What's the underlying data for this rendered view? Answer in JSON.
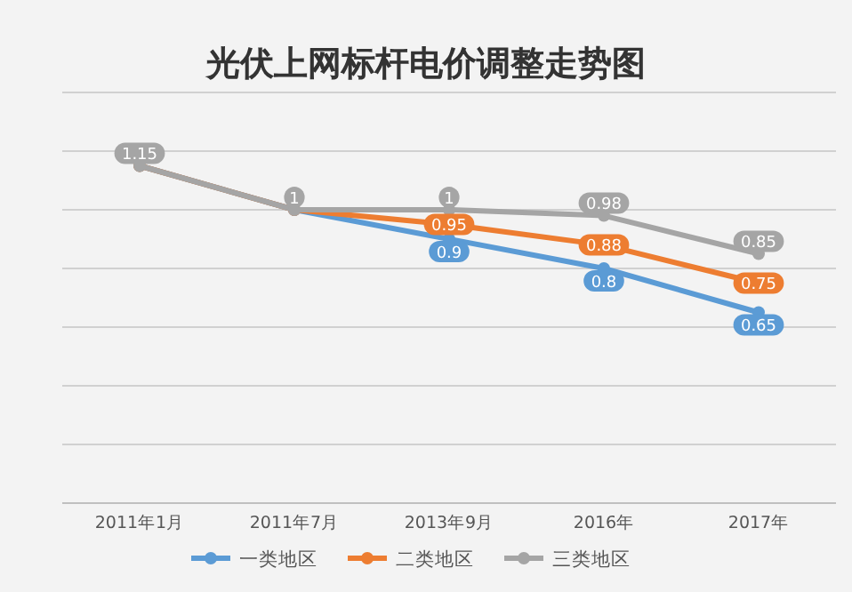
{
  "chart_data": {
    "type": "line",
    "title": "光伏上网标杆电价调整走势图",
    "categories": [
      "2011年1月",
      "2011年7月",
      "2013年9月",
      "2016年",
      "2017年"
    ],
    "series": [
      {
        "name": "一类地区",
        "color": "#5b9bd5",
        "values": [
          1.15,
          1,
          0.9,
          0.8,
          0.65
        ],
        "value_labels": [
          null,
          null,
          "0.9",
          "0.8",
          "0.65"
        ]
      },
      {
        "name": "二类地区",
        "color": "#ed7d31",
        "values": [
          1.15,
          1,
          0.95,
          0.88,
          0.75
        ],
        "value_labels": [
          null,
          null,
          "0.95",
          "0.88",
          "0.75"
        ]
      },
      {
        "name": "三类地区",
        "color": "#a5a5a5",
        "values": [
          1.15,
          1,
          1,
          0.98,
          0.85
        ],
        "value_labels": [
          "1.15",
          "1",
          "1",
          "0.98",
          "0.85"
        ]
      }
    ],
    "ylim": [
      0,
      1.4
    ],
    "yticks": [
      {
        "value": 0,
        "label": null
      },
      {
        "value": 0.2,
        "label": null
      },
      {
        "value": 0.4,
        "label": null
      },
      {
        "value": 0.6,
        "label": null
      },
      {
        "value": 0.8,
        "label": null
      },
      {
        "value": 1,
        "label": null
      },
      {
        "value": 1.2,
        "label": null
      },
      {
        "value": 1.4,
        "label": null
      }
    ],
    "tick_labels": "x",
    "grid": "y",
    "legend": "bottom",
    "marker": "circle",
    "line_style": "solid"
  }
}
